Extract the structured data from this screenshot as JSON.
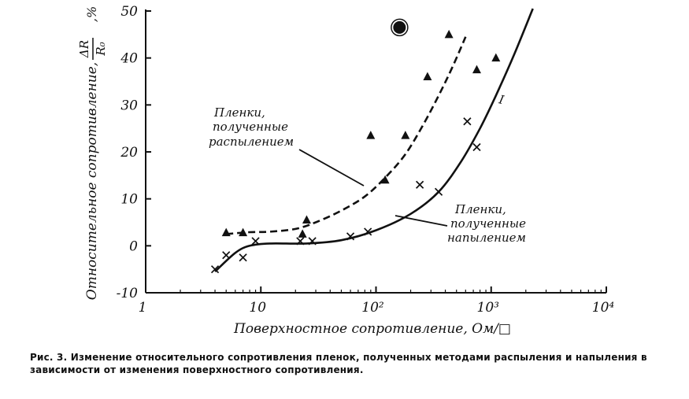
{
  "chart_data": {
    "type": "scatter",
    "x_scale": "log",
    "xlim": [
      1,
      10000
    ],
    "ylim": [
      -10,
      50
    ],
    "x_ticks": [
      1,
      10,
      100,
      1000,
      10000
    ],
    "x_tick_labels": [
      "1",
      "10",
      "10²",
      "10³",
      "10⁴"
    ],
    "y_ticks": [
      -10,
      0,
      10,
      20,
      30,
      40,
      50
    ],
    "y_tick_labels": [
      "-10",
      "0",
      "10",
      "20",
      "30",
      "40",
      "50"
    ],
    "xlabel": "Поверхностное сопротивление, Ом/□",
    "ylabel_main": "Относительное сопротивление,",
    "ylabel_fraction_num": "ΔR",
    "ylabel_fraction_den": "R₀",
    "ylabel_unit": ",%",
    "grid": false,
    "series": [
      {
        "name": "Пленки, полученные распылением",
        "marker": "triangle",
        "line_style": "dashed",
        "points": [
          [
            5,
            2.8
          ],
          [
            7,
            2.8
          ],
          [
            23,
            2.5
          ],
          [
            25,
            5.5
          ],
          [
            90,
            23.5
          ],
          [
            120,
            14
          ],
          [
            180,
            23.5
          ],
          [
            280,
            36
          ],
          [
            430,
            45
          ],
          [
            750,
            37.5
          ],
          [
            1100,
            40
          ]
        ],
        "curve": [
          [
            5,
            2.5
          ],
          [
            8,
            2.9
          ],
          [
            12,
            3.0
          ],
          [
            20,
            3.6
          ],
          [
            30,
            5.0
          ],
          [
            50,
            7.5
          ],
          [
            80,
            10.5
          ],
          [
            120,
            14.5
          ],
          [
            180,
            19.5
          ],
          [
            260,
            26
          ],
          [
            350,
            32
          ],
          [
            460,
            38
          ],
          [
            600,
            44.5
          ]
        ]
      },
      {
        "name": "Пленки, полученные напылением",
        "marker": "x",
        "line_style": "solid",
        "points": [
          [
            4,
            -5
          ],
          [
            5,
            -2
          ],
          [
            7,
            -2.5
          ],
          [
            9,
            1
          ],
          [
            22,
            1
          ],
          [
            28,
            1
          ],
          [
            60,
            2
          ],
          [
            85,
            3
          ],
          [
            240,
            13
          ],
          [
            350,
            11.5
          ],
          [
            620,
            26.5
          ],
          [
            750,
            21
          ]
        ],
        "curve": [
          [
            4,
            -5.5
          ],
          [
            6,
            -1.5
          ],
          [
            8,
            0
          ],
          [
            12,
            0.5
          ],
          [
            25,
            0.5
          ],
          [
            50,
            1.2
          ],
          [
            100,
            3.3
          ],
          [
            200,
            6.8
          ],
          [
            350,
            11.5
          ],
          [
            550,
            18
          ],
          [
            800,
            25
          ],
          [
            1100,
            32
          ],
          [
            1600,
            41
          ],
          [
            2300,
            50.5
          ]
        ]
      }
    ],
    "extra_marks": [
      {
        "shape": "filled-circle",
        "point": [
          160,
          46.5
        ]
      }
    ],
    "annotations": {
      "sputtered": [
        "Пленки,",
        "полученные",
        "распылением"
      ],
      "deposited": [
        "Пленки,",
        "полученные",
        "напылением"
      ],
      "curve_mark": "I"
    }
  },
  "caption": "Рис. 3. Изменение относительного сопротивления пленок, полученных методами распыления и напыления в зависимости от изменения поверхностного сопротивления."
}
